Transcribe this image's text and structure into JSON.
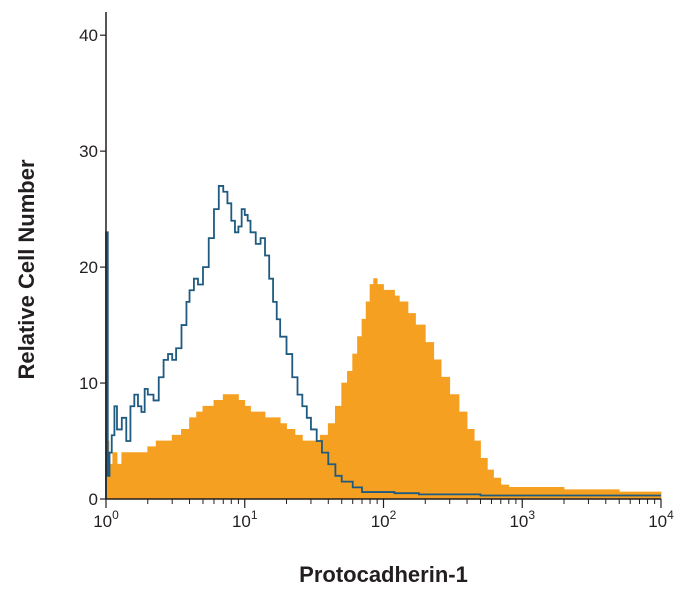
{
  "chart_data": {
    "type": "area",
    "title": "",
    "xlabel": "Protocadherin-1",
    "ylabel": "Relative Cell Number",
    "x_scale": "log",
    "xlim": [
      1,
      10000
    ],
    "ylim": [
      0,
      42
    ],
    "x_ticks": [
      {
        "value": 1,
        "base": "10",
        "exp": "0"
      },
      {
        "value": 10,
        "base": "10",
        "exp": "1"
      },
      {
        "value": 100,
        "base": "10",
        "exp": "2"
      },
      {
        "value": 1000,
        "base": "10",
        "exp": "3"
      },
      {
        "value": 10000,
        "base": "10",
        "exp": "4"
      }
    ],
    "y_ticks": [
      {
        "value": 0,
        "label": "0"
      },
      {
        "value": 10,
        "label": "10"
      },
      {
        "value": 20,
        "label": "20"
      },
      {
        "value": 30,
        "label": "30"
      },
      {
        "value": 40,
        "label": "40"
      }
    ],
    "grid": false,
    "series": [
      {
        "kind": "filled-histogram",
        "color": "#f5a020",
        "points": [
          [
            1.0,
            5
          ],
          [
            1.05,
            3
          ],
          [
            1.12,
            4
          ],
          [
            1.2,
            3
          ],
          [
            1.3,
            4
          ],
          [
            1.45,
            4
          ],
          [
            1.6,
            4
          ],
          [
            1.8,
            4
          ],
          [
            2.0,
            4.5
          ],
          [
            2.3,
            5
          ],
          [
            2.6,
            5
          ],
          [
            3.0,
            5.5
          ],
          [
            3.5,
            6
          ],
          [
            4.0,
            7
          ],
          [
            4.5,
            7.5
          ],
          [
            5.0,
            8
          ],
          [
            6.0,
            8.5
          ],
          [
            7.0,
            9
          ],
          [
            8.0,
            9
          ],
          [
            9.0,
            8.5
          ],
          [
            10.0,
            8
          ],
          [
            11.0,
            7.5
          ],
          [
            12.0,
            7.5
          ],
          [
            14.0,
            7
          ],
          [
            16.0,
            7
          ],
          [
            18.0,
            6.5
          ],
          [
            20.0,
            6
          ],
          [
            23.0,
            5.5
          ],
          [
            26.0,
            5
          ],
          [
            30.0,
            5
          ],
          [
            35.0,
            5.5
          ],
          [
            40.0,
            6.5
          ],
          [
            45.0,
            8
          ],
          [
            50.0,
            10
          ],
          [
            55.0,
            11
          ],
          [
            60.0,
            12.5
          ],
          [
            65.0,
            14
          ],
          [
            70.0,
            15.5
          ],
          [
            75.0,
            17
          ],
          [
            80.0,
            18.5
          ],
          [
            85.0,
            19
          ],
          [
            90.0,
            18.5
          ],
          [
            100.0,
            18
          ],
          [
            110.0,
            18
          ],
          [
            120.0,
            17.5
          ],
          [
            130.0,
            17
          ],
          [
            150.0,
            16
          ],
          [
            170.0,
            15
          ],
          [
            200.0,
            13.5
          ],
          [
            230.0,
            12
          ],
          [
            260.0,
            10.5
          ],
          [
            300.0,
            9
          ],
          [
            350.0,
            7.5
          ],
          [
            400.0,
            6
          ],
          [
            450.0,
            5
          ],
          [
            500.0,
            3.5
          ],
          [
            560.0,
            2.5
          ],
          [
            620.0,
            1.8
          ],
          [
            700.0,
            1.2
          ],
          [
            800.0,
            1
          ],
          [
            1000.0,
            1
          ],
          [
            1500.0,
            1
          ],
          [
            2000.0,
            0.8
          ],
          [
            3000.0,
            0.8
          ],
          [
            5000.0,
            0.6
          ],
          [
            7000.0,
            0.6
          ],
          [
            10000.0,
            0.5
          ]
        ]
      },
      {
        "kind": "outline-histogram",
        "color": "#1f5a80",
        "points": [
          [
            1.0,
            23
          ],
          [
            1.03,
            2
          ],
          [
            1.06,
            4
          ],
          [
            1.1,
            5.5
          ],
          [
            1.15,
            8
          ],
          [
            1.2,
            6
          ],
          [
            1.3,
            7
          ],
          [
            1.4,
            5
          ],
          [
            1.5,
            8
          ],
          [
            1.6,
            9
          ],
          [
            1.7,
            8
          ],
          [
            1.8,
            7.5
          ],
          [
            1.9,
            9.5
          ],
          [
            2.0,
            9
          ],
          [
            2.2,
            8.5
          ],
          [
            2.4,
            10.5
          ],
          [
            2.6,
            12
          ],
          [
            2.8,
            12.5
          ],
          [
            3.0,
            12
          ],
          [
            3.2,
            13
          ],
          [
            3.5,
            15
          ],
          [
            3.8,
            17
          ],
          [
            4.0,
            18
          ],
          [
            4.3,
            19
          ],
          [
            4.6,
            18.5
          ],
          [
            5.0,
            20
          ],
          [
            5.5,
            22.5
          ],
          [
            6.0,
            25
          ],
          [
            6.5,
            27
          ],
          [
            7.0,
            26.5
          ],
          [
            7.5,
            25.5
          ],
          [
            8.0,
            24
          ],
          [
            8.5,
            23
          ],
          [
            9.0,
            23.5
          ],
          [
            9.5,
            25
          ],
          [
            10.0,
            24.5
          ],
          [
            10.5,
            24
          ],
          [
            11.0,
            23
          ],
          [
            12.0,
            22
          ],
          [
            13.0,
            22.5
          ],
          [
            14.0,
            21
          ],
          [
            15.0,
            19
          ],
          [
            16.0,
            17
          ],
          [
            17.0,
            15.5
          ],
          [
            18.0,
            14
          ],
          [
            20.0,
            12.5
          ],
          [
            22.0,
            10.5
          ],
          [
            24.0,
            9
          ],
          [
            26.0,
            8
          ],
          [
            28.0,
            7
          ],
          [
            30.0,
            6
          ],
          [
            33.0,
            5
          ],
          [
            36.0,
            4
          ],
          [
            40.0,
            3
          ],
          [
            45.0,
            2
          ],
          [
            50.0,
            1.5
          ],
          [
            60.0,
            1
          ],
          [
            70.0,
            0.6
          ],
          [
            90.0,
            0.6
          ],
          [
            120.0,
            0.5
          ],
          [
            180.0,
            0.4
          ],
          [
            300.0,
            0.4
          ],
          [
            500.0,
            0.3
          ],
          [
            1000.0,
            0.3
          ],
          [
            3000.0,
            0.3
          ],
          [
            10000.0,
            0.3
          ]
        ]
      }
    ]
  }
}
